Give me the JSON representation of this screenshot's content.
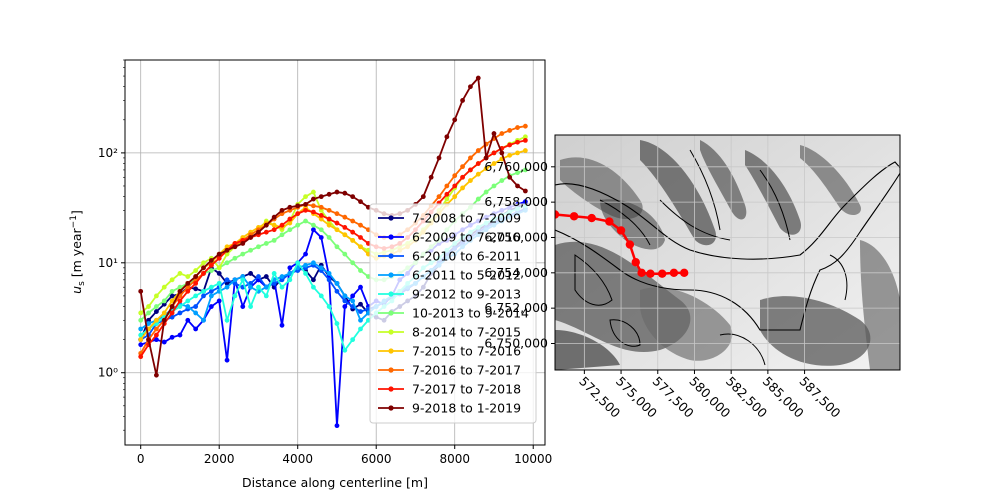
{
  "chart_data": [
    {
      "type": "line",
      "xlabel": "Distance along centerline [m]",
      "ylabel": "u_s [m year^-1]",
      "yscale": "log",
      "xlim": [
        -400,
        10300
      ],
      "ylim": [
        0.22,
        700
      ],
      "grid": true,
      "legend_position": "lower-right",
      "x_ticks": [
        0,
        2000,
        4000,
        6000,
        8000,
        10000
      ],
      "x_tick_labels": [
        "0",
        "2000",
        "4000",
        "6000",
        "8000",
        "10000"
      ],
      "y_ticks": [
        1,
        10,
        100
      ],
      "y_tick_labels": [
        "10⁰",
        "10¹",
        "10²"
      ],
      "x": [
        0,
        200,
        400,
        600,
        800,
        1000,
        1200,
        1400,
        1600,
        1800,
        2000,
        2200,
        2400,
        2600,
        2800,
        3000,
        3200,
        3400,
        3600,
        3800,
        4000,
        4200,
        4400,
        4600,
        4800,
        5000,
        5200,
        5400,
        5600,
        5800,
        6000,
        6200,
        6400,
        6600,
        6800,
        7000,
        7200,
        7400,
        7600,
        7800,
        8000,
        8200,
        8400,
        8600,
        8800,
        9000,
        9200,
        9400,
        9600,
        9800
      ],
      "series": [
        {
          "name": "7-2008 to 7-2009",
          "color": "#00007f",
          "values": [
            2.0,
            3.0,
            3.6,
            4.2,
            5.0,
            5.2,
            6.0,
            5.8,
            5.5,
            9.0,
            8.0,
            6.5,
            7.0,
            7.5,
            8.0,
            7.0,
            7.5,
            6.0,
            7.2,
            8.0,
            9.0,
            8.5,
            7.0,
            9.5,
            7.5,
            6.5,
            5.0,
            3.8,
            4.2,
            3.5,
            3.2,
            3.0,
            3.6,
            4.0,
            4.5,
            5.0,
            6.0,
            8.0,
            9.5,
            12.0,
            14.0,
            16.0,
            18.0,
            20.0,
            22.0,
            24.0,
            27.0,
            30.0,
            32.0,
            34.0
          ]
        },
        {
          "name": "6-2009 to 7-2010",
          "color": "#0000ff",
          "values": [
            1.8,
            1.9,
            2.0,
            1.9,
            2.1,
            2.2,
            3.0,
            2.5,
            3.0,
            4.0,
            4.5,
            1.3,
            7.0,
            4.0,
            6.0,
            7.0,
            6.0,
            7.0,
            2.7,
            9.0,
            10.0,
            12.0,
            20.0,
            17.0,
            7.5,
            0.33,
            4.0,
            5.0,
            6.0,
            4.0,
            4.5,
            4.2,
            5.0,
            7.0,
            8.0,
            10.0,
            12.0,
            13.0,
            15.0,
            16.0,
            18.0,
            20.0,
            22.0,
            24.0,
            26.0,
            28.0,
            30.0,
            32.0,
            34.0,
            36.0
          ]
        },
        {
          "name": "6-2010 to 6-2011",
          "color": "#0050ff",
          "values": [
            2.0,
            2.2,
            2.8,
            3.0,
            3.2,
            3.5,
            3.8,
            4.0,
            5.0,
            5.5,
            6.0,
            7.0,
            6.5,
            6.0,
            6.5,
            7.5,
            6.0,
            6.5,
            7.0,
            8.0,
            8.5,
            9.0,
            9.5,
            8.5,
            7.0,
            5.5,
            4.5,
            4.0,
            3.6,
            3.8,
            4.0,
            4.4,
            4.8,
            5.2,
            5.8,
            6.5,
            7.5,
            8.5,
            10.0,
            12.0,
            13.5,
            15.0,
            17.0,
            19.0,
            21.0,
            23.0,
            25.0,
            27.0,
            29.0,
            31.0
          ]
        },
        {
          "name": "6-2011 to 5-2012",
          "color": "#00a0ff",
          "values": [
            2.5,
            2.8,
            3.0,
            3.3,
            3.8,
            4.2,
            4.0,
            3.5,
            3.0,
            5.0,
            5.5,
            6.0,
            7.0,
            7.5,
            6.0,
            5.5,
            6.0,
            7.0,
            7.5,
            8.0,
            9.0,
            9.5,
            10.0,
            9.0,
            8.0,
            6.5,
            5.0,
            4.5,
            3.0,
            3.5,
            4.0,
            4.5,
            5.0,
            5.5,
            6.0,
            6.5,
            7.5,
            8.5,
            9.5,
            11.0,
            12.0,
            14.0,
            16.0,
            18.0,
            20.0,
            22.0,
            24.0,
            26.0,
            28.0,
            30.0
          ]
        },
        {
          "name": "9-2012 to 9-2013",
          "color": "#20ffdf",
          "values": [
            2.2,
            2.5,
            2.8,
            3.2,
            3.6,
            4.0,
            4.5,
            5.0,
            5.5,
            6.0,
            6.5,
            3.0,
            5.0,
            7.0,
            4.0,
            6.0,
            5.0,
            8.0,
            6.0,
            7.0,
            10.0,
            8.0,
            6.0,
            5.0,
            4.0,
            2.8,
            1.6,
            2.0,
            2.5,
            3.0,
            3.5,
            4.0,
            4.5,
            5.5,
            6.5,
            7.5,
            9.0,
            10.0,
            11.0,
            13.0,
            15.0,
            17.0,
            19.0,
            21.0,
            23.0,
            25.0,
            27.0,
            29.0,
            31.0,
            33.0
          ]
        },
        {
          "name": "10-2013 to 9-2014",
          "color": "#7cff79",
          "values": [
            3.0,
            3.5,
            4.0,
            4.5,
            5.5,
            6.0,
            6.5,
            7.0,
            8.0,
            8.5,
            9.0,
            10.0,
            11.0,
            12.0,
            13.0,
            14.0,
            15.0,
            16.0,
            18.0,
            20.0,
            22.0,
            24.0,
            22.0,
            20.0,
            17.0,
            14.0,
            12.0,
            10.0,
            8.5,
            7.5,
            7.0,
            7.0,
            7.5,
            8.0,
            9.0,
            10.0,
            12.0,
            14.0,
            16.0,
            20.0,
            24.0,
            28.0,
            32.0,
            38.0,
            44.0,
            50.0,
            56.0,
            62.0,
            66.0,
            70.0
          ]
        },
        {
          "name": "8-2014 to 7-2015",
          "color": "#c6ff27",
          "values": [
            3.5,
            4.0,
            5.0,
            6.0,
            7.0,
            8.0,
            7.5,
            8.5,
            10.0,
            11.0,
            9.0,
            12.0,
            14.0,
            16.0,
            18.0,
            20.0,
            24.0,
            22.0,
            20.0,
            24.0,
            34.0,
            40.0,
            44.0,
            30.0,
            24.0,
            20.0,
            18.0,
            16.0,
            14.0,
            13.0,
            12.0,
            12.5,
            13.0,
            14.0,
            15.0,
            17.0,
            20.0,
            24.0,
            30.0,
            38.0,
            48.0,
            60.0,
            70.0,
            80.0,
            90.0,
            100.0,
            110.0,
            120.0,
            130.0,
            140.0
          ]
        },
        {
          "name": "7-2015 to 7-2016",
          "color": "#ffc400",
          "values": [
            2.0,
            2.5,
            3.0,
            3.5,
            4.5,
            5.5,
            6.5,
            7.5,
            9.0,
            10.0,
            12.0,
            14.0,
            15.0,
            17.0,
            19.0,
            21.0,
            23.0,
            22.0,
            21.0,
            23.0,
            28.0,
            32.0,
            28.0,
            25.0,
            22.0,
            20.0,
            18.0,
            16.0,
            14.0,
            12.0,
            11.0,
            11.5,
            12.0,
            13.0,
            14.0,
            16.0,
            19.0,
            23.0,
            28.0,
            34.0,
            40.0,
            48.0,
            56.0,
            64.0,
            72.0,
            80.0,
            88.0,
            95.0,
            100.0,
            105.0
          ]
        },
        {
          "name": "7-2016 to 7-2017",
          "color": "#ff6800",
          "values": [
            1.5,
            2.0,
            2.5,
            3.0,
            4.0,
            5.0,
            6.0,
            7.0,
            8.0,
            9.5,
            11.0,
            13.0,
            14.5,
            16.0,
            18.0,
            20.0,
            22.0,
            25.0,
            28.0,
            30.0,
            32.0,
            34.0,
            33.0,
            32.0,
            30.0,
            28.0,
            26.0,
            24.0,
            22.0,
            20.0,
            18.0,
            17.0,
            17.0,
            18.0,
            20.0,
            23.0,
            27.0,
            33.0,
            40.0,
            50.0,
            62.0,
            75.0,
            90.0,
            105.0,
            120.0,
            135.0,
            150.0,
            160.0,
            170.0,
            175.0
          ]
        },
        {
          "name": "7-2017 to 7-2018",
          "color": "#ff1300",
          "values": [
            1.4,
            1.8,
            2.2,
            2.8,
            3.5,
            4.5,
            5.5,
            6.5,
            8.0,
            9.5,
            11.0,
            13.0,
            15.0,
            16.0,
            17.0,
            18.0,
            19.0,
            20.0,
            22.0,
            25.0,
            28.0,
            30.0,
            29.0,
            27.0,
            25.0,
            23.0,
            21.0,
            19.0,
            17.0,
            15.0,
            14.0,
            13.5,
            14.0,
            15.0,
            17.0,
            20.0,
            24.0,
            29.0,
            35.0,
            42.0,
            50.0,
            60.0,
            70.0,
            80.0,
            90.0,
            100.0,
            110.0,
            118.0,
            125.0,
            130.0
          ]
        },
        {
          "name": "9-2018 to 1-2019",
          "color": "#7f0000",
          "values": [
            5.5,
            2.0,
            0.95,
            3.0,
            4.0,
            5.5,
            6.5,
            7.5,
            9.0,
            10.5,
            12.0,
            13.0,
            14.0,
            15.0,
            17.0,
            19.0,
            22.0,
            26.0,
            30.0,
            32.0,
            33.0,
            34.0,
            38.0,
            40.0,
            42.0,
            44.0,
            43.0,
            40.0,
            36.0,
            32.0,
            30.0,
            28.0,
            27.0,
            28.0,
            30.0,
            34.0,
            40.0,
            60.0,
            90.0,
            140.0,
            200.0,
            300.0,
            400.0,
            480.0,
            90.0,
            150.0,
            100.0,
            60.0,
            50.0,
            45.0
          ]
        }
      ]
    },
    {
      "type": "map",
      "x_ticks": [
        572500,
        575000,
        577500,
        580000,
        582500,
        585000,
        587500
      ],
      "x_tick_labels": [
        "572,500",
        "575,000",
        "577,500",
        "580,000",
        "582,500",
        "585,000",
        "587,500"
      ],
      "y_ticks": [
        6750000,
        6752000,
        6754000,
        6756000,
        6758000,
        6760000
      ],
      "y_tick_labels": [
        "6,750,000",
        "6,752,000",
        "6,754,000",
        "6,756,000",
        "6,758,000",
        "6,760,000"
      ],
      "xlim": [
        570500,
        594000
      ],
      "ylim": [
        6748500,
        6761800
      ],
      "grid": true,
      "centerline_color": "#ff0000",
      "centerline": [
        [
          570500,
          6757300
        ],
        [
          571800,
          6757200
        ],
        [
          573000,
          6757100
        ],
        [
          574200,
          6756900
        ],
        [
          575000,
          6756400
        ],
        [
          575600,
          6755600
        ],
        [
          576000,
          6754600
        ],
        [
          576400,
          6754000
        ],
        [
          577000,
          6753950
        ],
        [
          577800,
          6753950
        ],
        [
          578600,
          6754000
        ],
        [
          579300,
          6754000
        ]
      ]
    }
  ]
}
